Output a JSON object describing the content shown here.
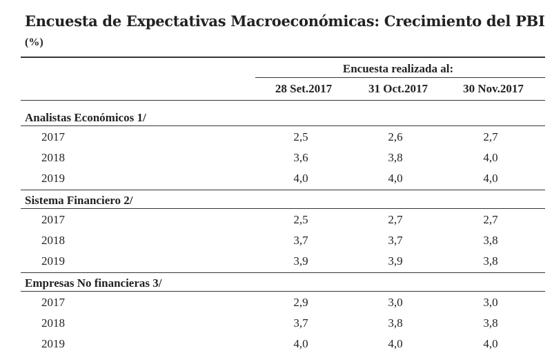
{
  "title": "Encuesta de Expectativas Macroeconómicas: Crecimiento del PBI",
  "subtitle": "(%)",
  "table": {
    "group_header": "Encuesta realizada al:",
    "columns": [
      "28 Set.2017",
      "31 Oct.2017",
      "30 Nov.2017"
    ],
    "sections": [
      {
        "label": "Analistas Económicos 1/",
        "rows": [
          [
            "2017",
            "2,5",
            "2,6",
            "2,7"
          ],
          [
            "2018",
            "3,6",
            "3,8",
            "4,0"
          ],
          [
            "2019",
            "4,0",
            "4,0",
            "4,0"
          ]
        ]
      },
      {
        "label": "Sistema Financiero 2/",
        "rows": [
          [
            "2017",
            "2,5",
            "2,7",
            "2,7"
          ],
          [
            "2018",
            "3,7",
            "3,7",
            "3,8"
          ],
          [
            "2019",
            "3,9",
            "3,9",
            "3,8"
          ]
        ]
      },
      {
        "label": "Empresas No financieras 3/",
        "rows": [
          [
            "2017",
            "2,9",
            "3,0",
            "3,0"
          ],
          [
            "2018",
            "3,7",
            "3,8",
            "3,8"
          ],
          [
            "2019",
            "4,0",
            "4,0",
            "4,0"
          ]
        ]
      }
    ]
  }
}
